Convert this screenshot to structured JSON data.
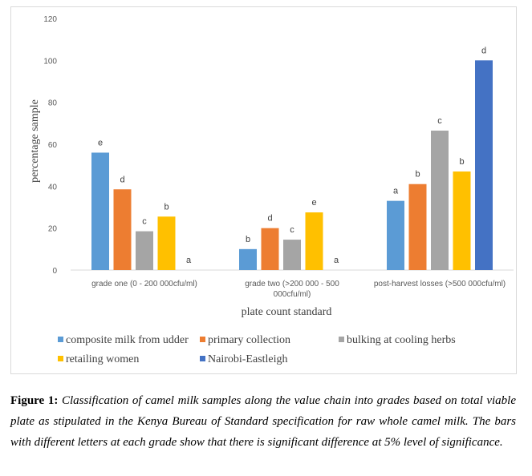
{
  "chart_data": {
    "type": "bar",
    "xlabel": "plate count standard",
    "ylabel": "percentage sample",
    "ylim": [
      0,
      120
    ],
    "yticks": [
      "0",
      "20",
      "40",
      "60",
      "80",
      "100",
      "120"
    ],
    "grid": false,
    "legend_position": "bottom",
    "categories": [
      "grade one (0 - 200 000cfu/ml)",
      "grade two (>200 000 - 500 000cfu/ml)",
      "post-harvest losses (>500 000cfu/ml)"
    ],
    "category_label_lines": [
      [
        "grade one (0 - 200 000cfu/ml)"
      ],
      [
        "grade two (>200 000 - 500",
        "000cfu/ml)"
      ],
      [
        "post-harvest losses (>500 000cfu/ml)"
      ]
    ],
    "series": [
      {
        "name": "composite milk from udder",
        "color": "#5b9bd5",
        "values": [
          56,
          10,
          33
        ],
        "labels": [
          "e",
          "b",
          "a"
        ]
      },
      {
        "name": "primary collection",
        "color": "#ed7d31",
        "values": [
          38.5,
          20,
          41
        ],
        "labels": [
          "d",
          "d",
          "b"
        ]
      },
      {
        "name": "bulking at cooling herbs",
        "color": "#a5a5a5",
        "values": [
          18.5,
          14.5,
          66.5
        ],
        "labels": [
          "c",
          "c",
          "c"
        ]
      },
      {
        "name": "retailing women",
        "color": "#ffc000",
        "values": [
          25.5,
          27.5,
          47
        ],
        "labels": [
          "b",
          "e",
          "b"
        ]
      },
      {
        "name": "Nairobi-Eastleigh",
        "color": "#4472c4",
        "values": [
          0,
          0,
          100
        ],
        "labels": [
          "a",
          "a",
          "d"
        ]
      }
    ]
  },
  "caption": {
    "label": "Figure 1:",
    "text": "Classification of camel milk samples along the value chain into grades based on total viable plate as stipulated in the Kenya Bureau of Standard specification for raw whole camel milk. The bars with different letters at each grade show that there is significant difference at 5% level of significance."
  }
}
